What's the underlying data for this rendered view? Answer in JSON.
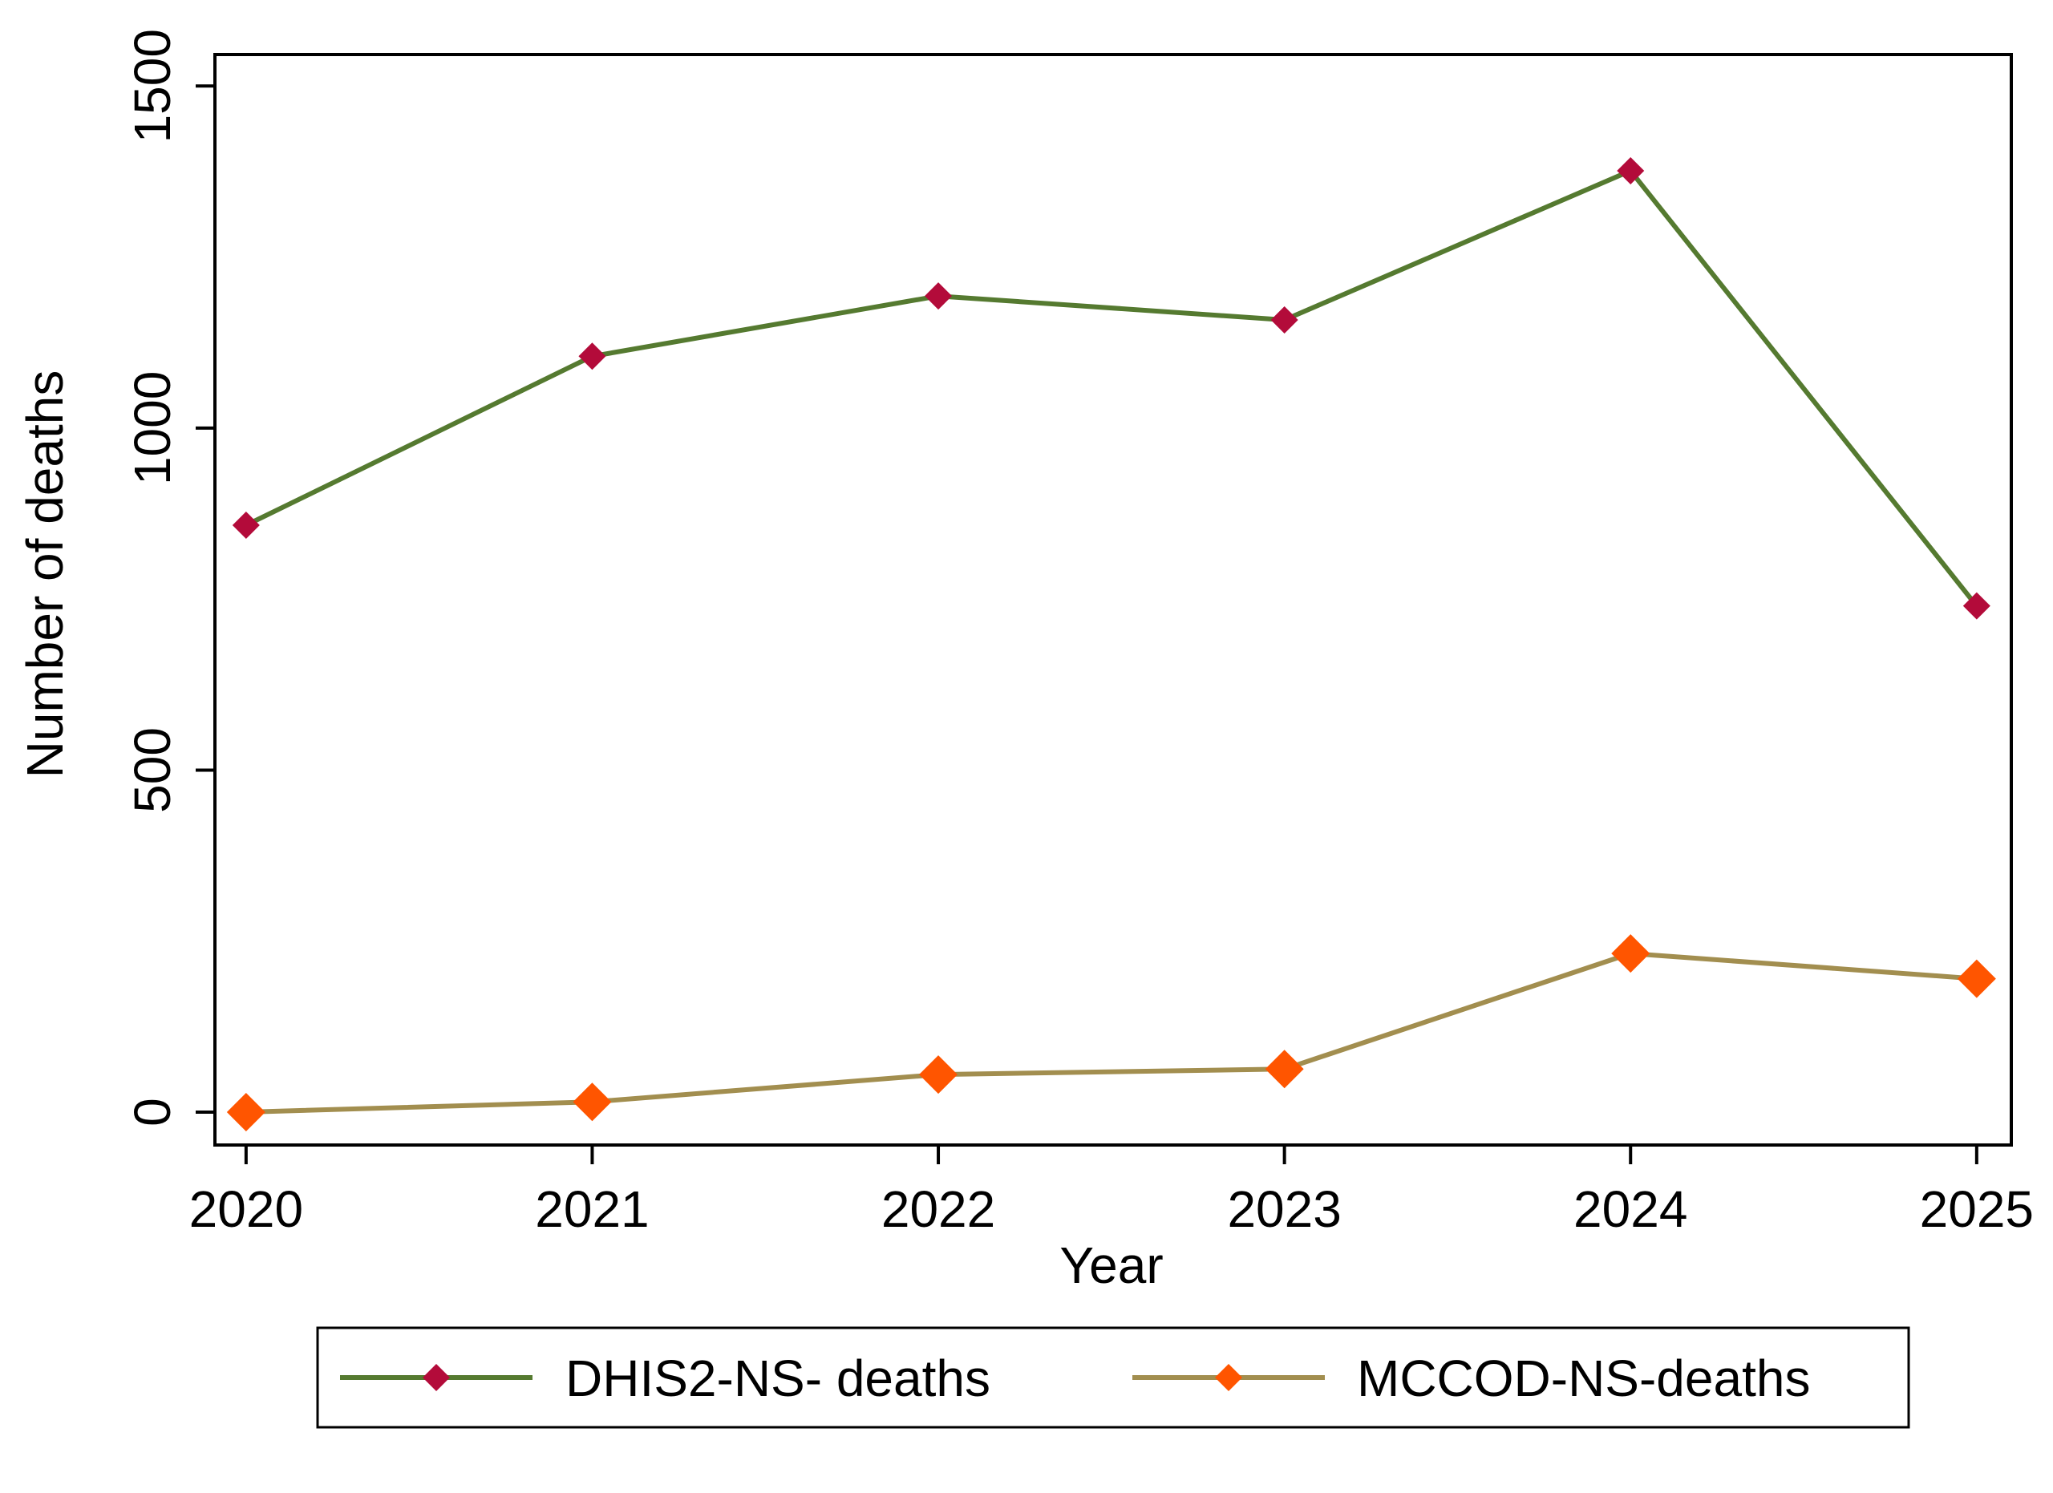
{
  "chart_data": {
    "type": "line",
    "title": "",
    "xlabel": "Year",
    "ylabel": "Number of deaths",
    "categories": [
      "2020",
      "2021",
      "2022",
      "2023",
      "2024",
      "2025"
    ],
    "x": [
      2020,
      2021,
      2022,
      2023,
      2024,
      2025
    ],
    "xlim": [
      2019.91,
      2025.1
    ],
    "ylim": [
      -48,
      1546
    ],
    "yticks": [
      0,
      500,
      1000,
      1500
    ],
    "grid": false,
    "legend_position": "bottom",
    "series": [
      {
        "name": "DHIS2-NS- deaths",
        "values": [
          858,
          1105,
          1193,
          1158,
          1376,
          740
        ],
        "line_color": "#557a30",
        "marker": "diamond",
        "marker_color": "#b30b3a"
      },
      {
        "name": "MCCOD-NS-deaths",
        "values": [
          0,
          15,
          55,
          63,
          232,
          195
        ],
        "line_color": "#a28e4f",
        "marker": "diamond",
        "marker_color": "#ff5500"
      }
    ]
  }
}
